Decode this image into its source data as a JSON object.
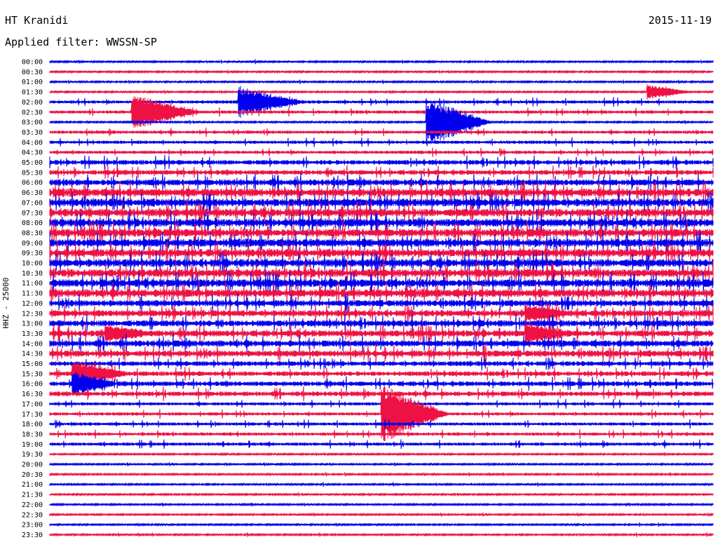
{
  "header": {
    "station": "HT Kranidi",
    "date": "2015-11-19",
    "filter": "Applied filter: WWSSN-SP"
  },
  "chart_data": {
    "type": "line",
    "title": "HT Kranidi",
    "subtitle": "Applied filter: WWSSN-SP",
    "ylabel": "HHZ - 25000",
    "colors": [
      "#0000ee",
      "#ee1144"
    ],
    "rows": [
      "00:00",
      "00:30",
      "01:00",
      "01:30",
      "02:00",
      "02:30",
      "03:00",
      "03:30",
      "04:00",
      "04:30",
      "05:00",
      "05:30",
      "06:00",
      "06:30",
      "07:00",
      "07:30",
      "08:00",
      "08:30",
      "09:00",
      "09:30",
      "10:00",
      "10:30",
      "11:00",
      "11:30",
      "12:00",
      "12:30",
      "13:00",
      "13:30",
      "14:00",
      "14:30",
      "15:00",
      "15:30",
      "16:00",
      "16:30",
      "17:00",
      "17:30",
      "18:00",
      "18:30",
      "19:00",
      "19:30",
      "20:00",
      "20:30",
      "21:00",
      "21:30",
      "22:00",
      "22:30",
      "23:00",
      "23:30"
    ],
    "noise_level": [
      1,
      1,
      1,
      1,
      2,
      2,
      1,
      2,
      2,
      2,
      3,
      3,
      4,
      5,
      5,
      5,
      5,
      5,
      5,
      5,
      5,
      5,
      5,
      5,
      4,
      4,
      4,
      4,
      4,
      4,
      3,
      3,
      3,
      3,
      2,
      2,
      2,
      2,
      2,
      1,
      1,
      1,
      1,
      1,
      1,
      1,
      1,
      1
    ],
    "events": [
      {
        "row": "01:30",
        "minute": 27.0,
        "amplitude": 10,
        "duration": 2.0
      },
      {
        "row": "02:00",
        "minute": 8.5,
        "amplitude": 20,
        "duration": 3.0
      },
      {
        "row": "02:30",
        "minute": 3.7,
        "amplitude": 25,
        "duration": 3.0
      },
      {
        "row": "03:00",
        "minute": 17.0,
        "amplitude": 34,
        "duration": 3.0
      },
      {
        "row": "15:30",
        "minute": 1.0,
        "amplitude": 18,
        "duration": 2.5
      },
      {
        "row": "16:00",
        "minute": 1.0,
        "amplitude": 16,
        "duration": 2.0
      },
      {
        "row": "17:30",
        "minute": 15.0,
        "amplitude": 40,
        "duration": 3.0
      },
      {
        "row": "12:30",
        "minute": 21.5,
        "amplitude": 10,
        "duration": 2.0
      },
      {
        "row": "13:30",
        "minute": 21.5,
        "amplitude": 12,
        "duration": 2.0
      },
      {
        "row": "13:30",
        "minute": 2.5,
        "amplitude": 10,
        "duration": 2.0
      }
    ]
  }
}
